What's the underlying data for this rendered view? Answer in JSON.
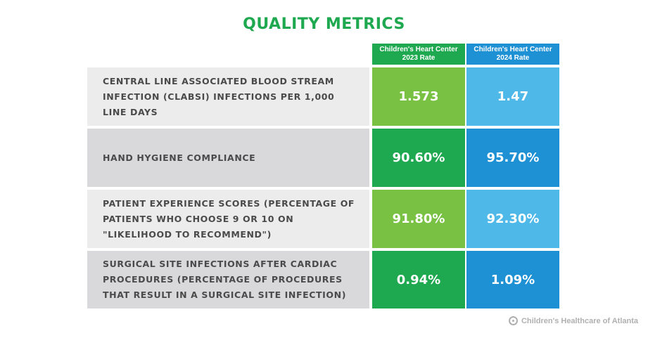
{
  "title": "QUALITY METRICS",
  "columns": [
    {
      "line1": "Children's Heart Center",
      "line2": "2023 Rate",
      "color": "#1ea84f"
    },
    {
      "line1": "Children's Heart Center",
      "line2": "2024 Rate",
      "color": "#1e90d4"
    }
  ],
  "rows": [
    {
      "label": "CENTRAL LINE ASSOCIATED BLOOD STREAM INFECTION (CLABSI) INFECTIONS PER 1,000 LINE DAYS",
      "v2023": "1.573",
      "v2024": "1.47"
    },
    {
      "label": "HAND HYGIENE COMPLIANCE",
      "v2023": "90.60%",
      "v2024": "95.70%"
    },
    {
      "label": "PATIENT EXPERIENCE SCORES (PERCENTAGE OF PATIENTS WHO CHOOSE 9 OR 10 ON \"LIKELIHOOD TO RECOMMEND\")",
      "v2023": "91.80%",
      "v2024": "92.30%"
    },
    {
      "label": "SURGICAL SITE INFECTIONS AFTER CARDIAC PROCEDURES (PERCENTAGE OF PROCEDURES THAT RESULT IN A SURGICAL SITE INFECTION)",
      "v2023": "0.94%",
      "v2024": "1.09%"
    }
  ],
  "chart_data": {
    "type": "table",
    "title": "QUALITY METRICS",
    "columns": [
      "Children's Heart Center 2023 Rate",
      "Children's Heart Center 2024 Rate"
    ],
    "rows": [
      {
        "metric": "CENTRAL LINE ASSOCIATED BLOOD STREAM INFECTION (CLABSI) INFECTIONS PER 1,000 LINE DAYS",
        "values": [
          1.573,
          1.47
        ]
      },
      {
        "metric": "HAND HYGIENE COMPLIANCE",
        "values": [
          90.6,
          95.7
        ]
      },
      {
        "metric": "PATIENT EXPERIENCE SCORES (PERCENTAGE OF PATIENTS WHO CHOOSE 9 OR 10 ON \"LIKELIHOOD TO RECOMMEND\")",
        "values": [
          91.8,
          92.3
        ]
      },
      {
        "metric": "SURGICAL SITE INFECTIONS AFTER CARDIAC PROCEDURES (PERCENTAGE OF PROCEDURES THAT RESULT IN A SURGICAL SITE INFECTION)",
        "values": [
          0.94,
          1.09
        ]
      }
    ]
  },
  "footer": {
    "logo_text": "Children's Healthcare of Atlanta",
    "logo_icon": "childrens-healthcare-logo-icon"
  },
  "colors": {
    "title": "#1ea84f",
    "green_light": "#79c143",
    "green_dark": "#1ea84f",
    "blue_light": "#4eb8e9",
    "blue_dark": "#1e90d4",
    "row_light": "#ececec",
    "row_dark": "#d9d9db"
  }
}
